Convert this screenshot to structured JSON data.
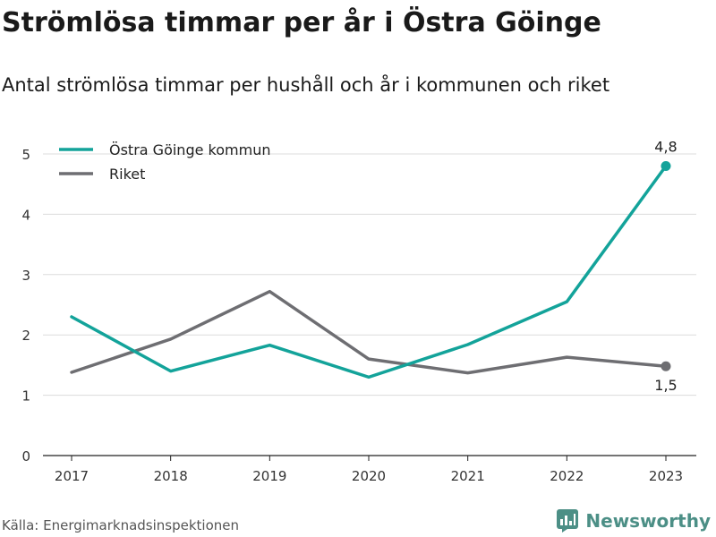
{
  "title": "Strömlösa timmar per år i Östra Göinge",
  "subtitle": "Antal strömlösa timmar per hushåll och år i kommunen och riket",
  "source": "Källa: Energimarknadsinspektionen",
  "brand": {
    "name": "Newsworthy",
    "icon": "newsworthy-logo-icon",
    "color": "#4c8f86"
  },
  "chart_data": {
    "type": "line",
    "x": [
      "2017",
      "2018",
      "2019",
      "2020",
      "2021",
      "2022",
      "2023"
    ],
    "yticks": [
      "0",
      "1",
      "2",
      "3",
      "4",
      "5"
    ],
    "ylim": [
      0,
      5.2
    ],
    "grid": true,
    "legend_position": "top-left",
    "series": [
      {
        "name": "Östra Göinge kommun",
        "color": "#13a39a",
        "values": [
          2.3,
          1.4,
          1.83,
          1.3,
          1.84,
          2.55,
          4.8
        ],
        "end_label": "4,8"
      },
      {
        "name": "Riket",
        "color": "#6e6e72",
        "values": [
          1.38,
          1.93,
          2.72,
          1.6,
          1.37,
          1.63,
          1.48
        ],
        "end_label": "1,5"
      }
    ]
  }
}
